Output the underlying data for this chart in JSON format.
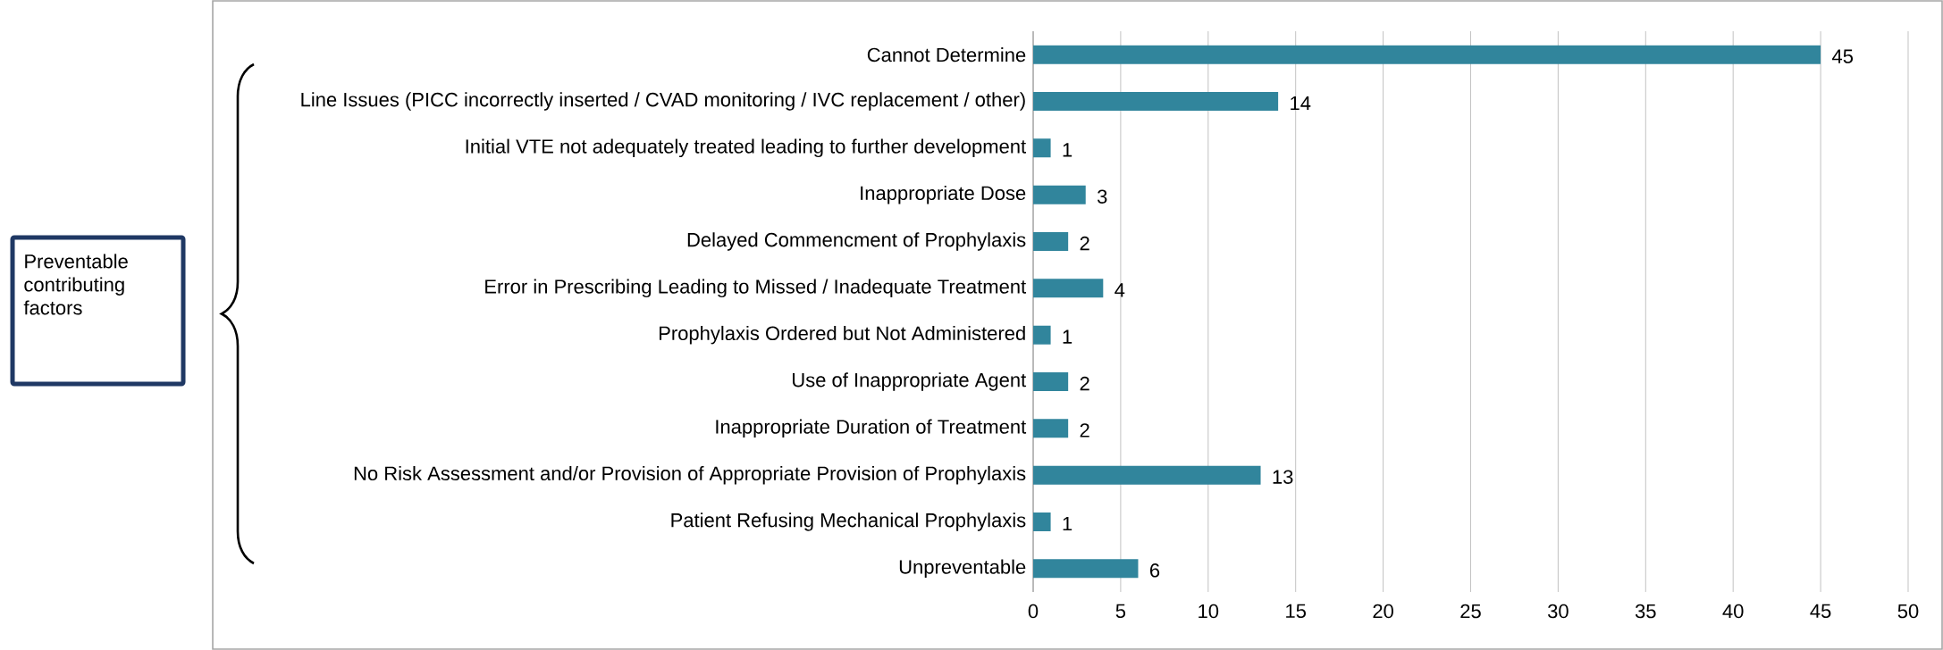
{
  "chart_data": {
    "type": "bar",
    "orientation": "horizontal",
    "categories": [
      "Cannot Determine",
      "Line Issues (PICC incorrectly inserted / CVAD monitoring / IVC replacement / other)",
      "Initial VTE not adequately treated leading to further development",
      "Inappropriate Dose",
      "Delayed Commencment of Prophylaxis",
      "Error in Prescribing Leading to Missed / Inadequate Treatment",
      "Prophylaxis Ordered but Not Administered",
      "Use of Inappropriate Agent",
      "Inappropriate Duration of Treatment",
      "No Risk Assessment and/or Provision of Appropriate Provision of Prophylaxis",
      "Patient Refusing Mechanical Prophylaxis",
      "Unpreventable"
    ],
    "values": [
      45,
      14,
      1,
      3,
      2,
      4,
      1,
      2,
      2,
      13,
      1,
      6
    ],
    "color": "#31859c",
    "xlim": [
      0,
      50
    ],
    "xticks": [
      0,
      5,
      10,
      15,
      20,
      25,
      30,
      35,
      40,
      45,
      50
    ],
    "grid": "x",
    "data_labels": true,
    "annotations": [
      "Preventable contributing factors"
    ]
  }
}
